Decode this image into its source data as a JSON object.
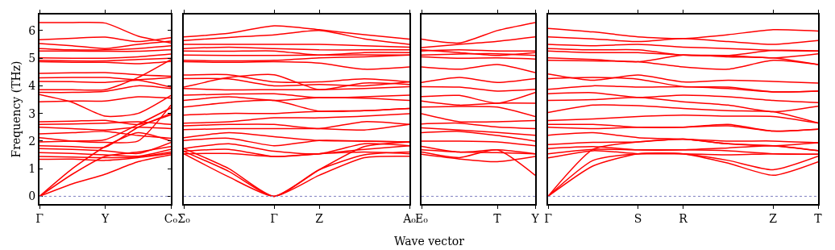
{
  "chart_data": [
    {
      "type": "line",
      "ylabel": "Frequency (THz)",
      "categories": [
        "Γ",
        null,
        "Y",
        null,
        "C₀"
      ],
      "ylim": [
        -0.28,
        6.58
      ],
      "yticks": [
        0,
        1,
        2,
        3,
        4,
        5,
        6
      ],
      "grid": false,
      "line_style": "solid",
      "marker": "none",
      "ref_lines": [
        {
          "axis": "y",
          "value": 0,
          "color": "#8080c0",
          "line_style": "dotted"
        }
      ],
      "series": [
        {
          "color": "#ff0000",
          "values": [
            6.29,
            6.29,
            6.27,
            5.8,
            5.55
          ]
        },
        {
          "color": "#ff0000",
          "values": [
            5.67,
            5.72,
            5.76,
            5.6,
            5.74
          ]
        },
        {
          "color": "#ff0000",
          "values": [
            5.53,
            5.45,
            5.35,
            5.5,
            5.62
          ]
        },
        {
          "color": "#ff0000",
          "values": [
            5.35,
            5.3,
            5.3,
            5.35,
            5.45
          ]
        },
        {
          "color": "#ff0000",
          "values": [
            5.26,
            5.26,
            5.25,
            5.25,
            5.3
          ]
        },
        {
          "color": "#ff0000",
          "values": [
            5.01,
            5.0,
            5.0,
            5.05,
            5.15
          ]
        },
        {
          "color": "#ff0000",
          "values": [
            4.92,
            4.9,
            4.9,
            4.95,
            5.0
          ]
        },
        {
          "color": "#ff0000",
          "values": [
            4.87,
            4.85,
            4.85,
            4.8,
            4.88
          ]
        },
        {
          "color": "#ff0000",
          "values": [
            4.45,
            4.47,
            4.48,
            4.4,
            4.35
          ]
        },
        {
          "color": "#ff0000",
          "values": [
            4.29,
            4.3,
            4.3,
            4.22,
            4.3
          ]
        },
        {
          "color": "#ff0000",
          "values": [
            4.16,
            4.15,
            4.12,
            4.2,
            3.95
          ]
        },
        {
          "color": "#ff0000",
          "values": [
            3.86,
            3.86,
            3.86,
            4.3,
            4.95
          ]
        },
        {
          "color": "#ff0000",
          "values": [
            3.76,
            3.76,
            3.8,
            4.0,
            3.9
          ]
        },
        {
          "color": "#ff0000",
          "values": [
            3.68,
            3.4,
            2.9,
            3.0,
            3.65
          ]
        },
        {
          "color": "#ff0000",
          "values": [
            3.42,
            3.45,
            3.45,
            3.6,
            3.55
          ]
        },
        {
          "color": "#ff0000",
          "values": [
            2.7,
            2.72,
            2.75,
            2.6,
            2.95
          ]
        },
        {
          "color": "#ff0000",
          "values": [
            2.6,
            2.62,
            2.65,
            2.7,
            2.6
          ]
        },
        {
          "color": "#ff0000",
          "values": [
            2.5,
            2.45,
            2.4,
            2.5,
            2.45
          ]
        },
        {
          "color": "#ff0000",
          "values": [
            2.26,
            2.3,
            2.35,
            2.2,
            2.1
          ]
        },
        {
          "color": "#ff0000",
          "values": [
            2.12,
            2.0,
            1.95,
            2.0,
            3.3
          ]
        },
        {
          "color": "#ff0000",
          "values": [
            1.97,
            2.0,
            2.05,
            2.6,
            3.2
          ]
        },
        {
          "color": "#ff0000",
          "values": [
            1.83,
            1.8,
            1.78,
            2.5,
            3.0
          ]
        },
        {
          "color": "#ff0000",
          "values": [
            1.73,
            1.7,
            1.65,
            1.55,
            1.95
          ]
        },
        {
          "color": "#ff0000",
          "values": [
            1.58,
            1.55,
            1.5,
            1.45,
            1.7
          ]
        },
        {
          "color": "#ff0000",
          "values": [
            1.44,
            1.42,
            1.4,
            1.42,
            1.6
          ]
        },
        {
          "color": "#ff0000",
          "values": [
            1.34,
            1.35,
            1.3,
            1.4,
            1.55
          ]
        },
        {
          "color": "#ff0000",
          "values": [
            0,
            1.0,
            1.8,
            2.3,
            2.0
          ]
        },
        {
          "color": "#ff0000",
          "values": [
            0,
            0.8,
            1.45,
            1.6,
            1.8
          ]
        },
        {
          "color": "#ff0000",
          "values": [
            0,
            0.45,
            0.8,
            1.25,
            1.5
          ]
        }
      ]
    },
    {
      "type": "line",
      "xlabel": "Wave vector",
      "categories": [
        "Σ₀",
        null,
        "Γ",
        "Z",
        null,
        "A₀"
      ],
      "ylim": [
        -0.28,
        6.58
      ],
      "tick_labels": "x",
      "grid": false,
      "line_style": "solid",
      "marker": "none",
      "ref_lines": [
        {
          "axis": "y",
          "value": 0,
          "color": "#8080c0",
          "line_style": "dotted"
        }
      ],
      "series": [
        {
          "color": "#ff0000",
          "values": [
            5.77,
            5.9,
            6.17,
            6.03,
            5.85,
            5.69
          ]
        },
        {
          "color": "#ff0000",
          "values": [
            5.64,
            5.75,
            5.84,
            6.0,
            5.7,
            5.5
          ]
        },
        {
          "color": "#ff0000",
          "values": [
            5.5,
            5.5,
            5.5,
            5.5,
            5.45,
            5.4
          ]
        },
        {
          "color": "#ff0000",
          "values": [
            5.35,
            5.4,
            5.35,
            5.3,
            5.3,
            5.3
          ]
        },
        {
          "color": "#ff0000",
          "values": [
            5.26,
            5.25,
            5.26,
            5.11,
            5.2,
            5.2
          ]
        },
        {
          "color": "#ff0000",
          "values": [
            5.11,
            5.1,
            5.1,
            5.11,
            5.12,
            5.11
          ]
        },
        {
          "color": "#ff0000",
          "values": [
            4.92,
            4.9,
            4.92,
            5.01,
            5.05,
            5.11
          ]
        },
        {
          "color": "#ff0000",
          "values": [
            4.87,
            4.85,
            4.87,
            4.82,
            4.6,
            4.68
          ]
        },
        {
          "color": "#ff0000",
          "values": [
            4.39,
            4.4,
            4.14,
            4.14,
            4.25,
            4.14
          ]
        },
        {
          "color": "#ff0000",
          "values": [
            4.26,
            4.25,
            4.0,
            4.05,
            4.0,
            4.14
          ]
        },
        {
          "color": "#ff0000",
          "values": [
            3.95,
            4.3,
            4.4,
            3.86,
            4.1,
            4.05
          ]
        },
        {
          "color": "#ff0000",
          "values": [
            3.9,
            3.85,
            3.86,
            3.86,
            3.9,
            3.97
          ]
        },
        {
          "color": "#ff0000",
          "values": [
            3.66,
            3.7,
            3.71,
            3.57,
            3.6,
            3.66
          ]
        },
        {
          "color": "#ff0000",
          "values": [
            3.47,
            3.6,
            3.47,
            3.57,
            3.55,
            3.47
          ]
        },
        {
          "color": "#ff0000",
          "values": [
            3.23,
            3.4,
            3.47,
            3.08,
            3.1,
            3.18
          ]
        },
        {
          "color": "#ff0000",
          "values": [
            2.94,
            3.0,
            3.0,
            3.08,
            3.1,
            3.18
          ]
        },
        {
          "color": "#ff0000",
          "values": [
            2.65,
            2.7,
            2.84,
            2.84,
            2.9,
            2.99
          ]
        },
        {
          "color": "#ff0000",
          "values": [
            2.55,
            2.6,
            2.6,
            2.45,
            2.7,
            2.6
          ]
        },
        {
          "color": "#ff0000",
          "values": [
            2.41,
            2.45,
            2.45,
            2.45,
            2.4,
            2.6
          ]
        },
        {
          "color": "#ff0000",
          "values": [
            2.12,
            2.3,
            2.16,
            2.02,
            2.0,
            1.97
          ]
        },
        {
          "color": "#ff0000",
          "values": [
            2.02,
            2.1,
            1.83,
            2.02,
            2.0,
            1.97
          ]
        },
        {
          "color": "#ff0000",
          "values": [
            1.73,
            1.9,
            1.63,
            1.54,
            1.9,
            1.83
          ]
        },
        {
          "color": "#ff0000",
          "values": [
            1.63,
            1.7,
            1.44,
            1.54,
            1.7,
            1.83
          ]
        },
        {
          "color": "#ff0000",
          "values": [
            1.54,
            1.55,
            1.44,
            1.54,
            1.6,
            1.54
          ]
        },
        {
          "color": "#ff0000",
          "values": [
            1.73,
            1.0,
            0,
            0.96,
            1.8,
            1.97
          ]
        },
        {
          "color": "#ff0000",
          "values": [
            1.63,
            0.9,
            0,
            0.96,
            1.5,
            1.6
          ]
        },
        {
          "color": "#ff0000",
          "values": [
            1.54,
            0.7,
            0,
            0.76,
            1.4,
            1.45
          ]
        }
      ]
    },
    {
      "type": "line",
      "categories": [
        "E₀",
        null,
        "T",
        "Y"
      ],
      "ylim": [
        -0.28,
        6.58
      ],
      "tick_labels": "x",
      "grid": false,
      "line_style": "solid",
      "marker": "none",
      "ref_lines": [
        {
          "axis": "y",
          "value": 0,
          "color": "#8080c0",
          "line_style": "dotted"
        }
      ],
      "series": [
        {
          "color": "#ff0000",
          "values": [
            5.69,
            5.55,
            6.0,
            6.29
          ]
        },
        {
          "color": "#ff0000",
          "values": [
            5.38,
            5.5,
            5.61,
            5.77
          ]
        },
        {
          "color": "#ff0000",
          "values": [
            5.3,
            5.2,
            5.1,
            5.2
          ]
        },
        {
          "color": "#ff0000",
          "values": [
            5.26,
            5.3,
            5.26,
            5.26
          ]
        },
        {
          "color": "#ff0000",
          "values": [
            5.11,
            5.15,
            5.16,
            5.1
          ]
        },
        {
          "color": "#ff0000",
          "values": [
            5.05,
            5.0,
            5.01,
            4.97
          ]
        },
        {
          "color": "#ff0000",
          "values": [
            4.68,
            4.6,
            4.77,
            4.48
          ]
        },
        {
          "color": "#ff0000",
          "values": [
            4.12,
            4.3,
            4.12,
            4.26
          ]
        },
        {
          "color": "#ff0000",
          "values": [
            3.97,
            3.95,
            3.81,
            3.87
          ]
        },
        {
          "color": "#ff0000",
          "values": [
            3.61,
            3.65,
            3.37,
            3.76
          ]
        },
        {
          "color": "#ff0000",
          "values": [
            3.45,
            3.3,
            3.37,
            3.37
          ]
        },
        {
          "color": "#ff0000",
          "values": [
            3.23,
            3.25,
            3.23,
            2.89
          ]
        },
        {
          "color": "#ff0000",
          "values": [
            2.99,
            2.7,
            2.7,
            2.74
          ]
        },
        {
          "color": "#ff0000",
          "values": [
            2.62,
            2.65,
            2.51,
            2.45
          ]
        },
        {
          "color": "#ff0000",
          "values": [
            2.48,
            2.4,
            2.31,
            2.21
          ]
        },
        {
          "color": "#ff0000",
          "values": [
            2.3,
            2.35,
            2.2,
            2.0
          ]
        },
        {
          "color": "#ff0000",
          "values": [
            2.0,
            2.0,
            1.97,
            1.83
          ]
        },
        {
          "color": "#ff0000",
          "values": [
            1.81,
            1.6,
            1.68,
            1.54
          ]
        },
        {
          "color": "#ff0000",
          "values": [
            1.68,
            1.6,
            1.58,
            1.54
          ]
        },
        {
          "color": "#ff0000",
          "values": [
            1.6,
            1.4,
            1.68,
            0.76
          ]
        },
        {
          "color": "#ff0000",
          "values": [
            1.52,
            1.35,
            1.25,
            1.44
          ]
        }
      ]
    },
    {
      "type": "line",
      "categories": [
        "Γ",
        null,
        "S",
        "R",
        null,
        "Z",
        "T"
      ],
      "ylim": [
        -0.28,
        6.58
      ],
      "tick_labels": "x",
      "grid": false,
      "line_style": "solid",
      "marker": "none",
      "ref_lines": [
        {
          "axis": "y",
          "value": 0,
          "color": "#8080c0",
          "line_style": "dotted"
        }
      ],
      "series": [
        {
          "color": "#ff0000",
          "values": [
            6.08,
            5.95,
            5.77,
            5.71,
            5.85,
            6.03,
            5.98
          ]
        },
        {
          "color": "#ff0000",
          "values": [
            5.77,
            5.7,
            5.6,
            5.71,
            5.6,
            5.5,
            5.64
          ]
        },
        {
          "color": "#ff0000",
          "values": [
            5.5,
            5.45,
            5.5,
            5.4,
            5.35,
            5.28,
            5.26
          ]
        },
        {
          "color": "#ff0000",
          "values": [
            5.35,
            5.3,
            5.3,
            5.11,
            5.1,
            5.28,
            5.26
          ]
        },
        {
          "color": "#ff0000",
          "values": [
            5.26,
            5.2,
            5.2,
            5.11,
            5.1,
            5.01,
            5.16
          ]
        },
        {
          "color": "#ff0000",
          "values": [
            5.01,
            4.95,
            4.87,
            5.11,
            5.05,
            5.01,
            4.77
          ]
        },
        {
          "color": "#ff0000",
          "values": [
            4.92,
            4.9,
            4.87,
            4.68,
            4.6,
            4.92,
            4.77
          ]
        },
        {
          "color": "#ff0000",
          "values": [
            4.43,
            4.2,
            4.39,
            4.14,
            4.2,
            4.16,
            4.1
          ]
        },
        {
          "color": "#ff0000",
          "values": [
            4.26,
            4.3,
            4.24,
            3.97,
            3.95,
            3.78,
            3.81
          ]
        },
        {
          "color": "#ff0000",
          "values": [
            3.87,
            4.0,
            3.95,
            3.97,
            3.9,
            3.78,
            3.81
          ]
        },
        {
          "color": "#ff0000",
          "values": [
            3.71,
            3.75,
            3.58,
            3.66,
            3.6,
            3.47,
            3.39
          ]
        },
        {
          "color": "#ff0000",
          "values": [
            3.47,
            3.5,
            3.58,
            3.42,
            3.3,
            3.06,
            3.26
          ]
        },
        {
          "color": "#ff0000",
          "values": [
            3.03,
            3.3,
            3.28,
            3.18,
            3.1,
            3.06,
            2.65
          ]
        },
        {
          "color": "#ff0000",
          "values": [
            2.74,
            2.8,
            2.89,
            2.94,
            2.9,
            2.89,
            2.65
          ]
        },
        {
          "color": "#ff0000",
          "values": [
            2.6,
            2.6,
            2.5,
            2.5,
            2.6,
            2.36,
            2.43
          ]
        },
        {
          "color": "#ff0000",
          "values": [
            2.5,
            2.45,
            2.5,
            2.5,
            2.55,
            2.36,
            2.43
          ]
        },
        {
          "color": "#ff0000",
          "values": [
            2.21,
            2.3,
            2.12,
            2.07,
            2.0,
            2.0,
            1.94
          ]
        },
        {
          "color": "#ff0000",
          "values": [
            1.87,
            1.95,
            1.97,
            2.07,
            1.9,
            1.83,
            1.65
          ]
        },
        {
          "color": "#ff0000",
          "values": [
            1.73,
            1.8,
            1.68,
            1.68,
            1.75,
            1.83,
            1.65
          ]
        },
        {
          "color": "#ff0000",
          "values": [
            1.54,
            1.7,
            1.68,
            1.68,
            1.65,
            1.54,
            1.52
          ]
        },
        {
          "color": "#ff0000",
          "values": [
            1.39,
            1.65,
            1.54,
            1.54,
            1.5,
            1.54,
            1.52
          ]
        },
        {
          "color": "#ff0000",
          "values": [
            0,
            1.7,
            1.97,
            2.07,
            1.9,
            1.83,
            1.94
          ]
        },
        {
          "color": "#ff0000",
          "values": [
            0,
            1.3,
            1.54,
            1.54,
            1.3,
            0.96,
            1.45
          ]
        },
        {
          "color": "#ff0000",
          "values": [
            0,
            1.1,
            1.54,
            1.54,
            1.2,
            0.76,
            1.25
          ]
        }
      ]
    }
  ]
}
